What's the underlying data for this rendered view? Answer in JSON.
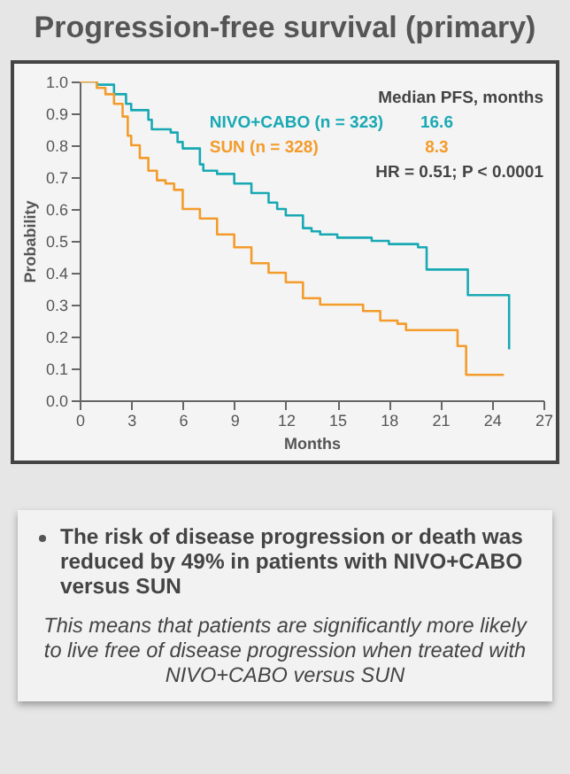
{
  "chart_data": {
    "type": "step",
    "title": "Progression-free survival (primary)",
    "xlabel": "Months",
    "ylabel": "Probability",
    "xlim": [
      0,
      27
    ],
    "xticks": [
      0,
      3,
      6,
      9,
      12,
      15,
      18,
      21,
      24,
      27
    ],
    "ylim": [
      0,
      1
    ],
    "yticks": [
      {
        "value": 0,
        "label": "0.0"
      },
      {
        "value": 0.1,
        "label": "0.1"
      },
      {
        "value": 0.2,
        "label": "0.2"
      },
      {
        "value": 0.3,
        "label": "0.3"
      },
      {
        "value": 0.4,
        "label": "0.4"
      },
      {
        "value": 0.5,
        "label": "0.5"
      },
      {
        "value": 0.6,
        "label": "0.6"
      },
      {
        "value": 0.7,
        "label": "0.7"
      },
      {
        "value": 0.8,
        "label": "0.8"
      },
      {
        "value": 0.9,
        "label": "0.9"
      },
      {
        "value": 1,
        "label": "1.0"
      }
    ],
    "grid": false,
    "series": [
      {
        "name": "NIVO+CABO (n = 323)",
        "color": "#19a9b4",
        "x": [
          0,
          1,
          2,
          2.7,
          3,
          4,
          4.2,
          5.3,
          5.7,
          6,
          7,
          7.2,
          8,
          9,
          10,
          11,
          11.5,
          12,
          13,
          13.5,
          14,
          15,
          17,
          18,
          19.7,
          20.2,
          22.6,
          25,
          25
        ],
        "values": [
          1,
          0.99,
          0.96,
          0.93,
          0.91,
          0.88,
          0.85,
          0.84,
          0.81,
          0.79,
          0.74,
          0.72,
          0.71,
          0.68,
          0.65,
          0.62,
          0.6,
          0.58,
          0.54,
          0.53,
          0.52,
          0.51,
          0.5,
          0.49,
          0.48,
          0.41,
          0.33,
          0.33,
          0.16
        ]
      },
      {
        "name": "SUN (n = 328)",
        "color": "#f39c2c",
        "x": [
          0,
          1,
          1.5,
          2,
          2.5,
          2.8,
          3,
          3.5,
          4,
          4.5,
          5,
          5.5,
          6,
          7,
          8,
          9,
          10,
          11,
          12,
          13,
          14,
          15,
          16.5,
          17.5,
          18.5,
          19,
          22,
          22.5,
          24.7
        ],
        "values": [
          1,
          0.98,
          0.96,
          0.93,
          0.89,
          0.83,
          0.8,
          0.76,
          0.72,
          0.69,
          0.68,
          0.66,
          0.6,
          0.57,
          0.52,
          0.48,
          0.43,
          0.4,
          0.37,
          0.32,
          0.3,
          0.3,
          0.28,
          0.25,
          0.24,
          0.22,
          0.17,
          0.08,
          0.08
        ]
      }
    ],
    "annotations": [
      "Median PFS, months",
      "16.6",
      "8.3",
      "HR = 0.51; P < 0.0001",
      "The risk of disease progression or death was reduced by 49% in patients with NIVO+CABO versus SUN",
      "This means that patients are significantly more likely to live free of disease progression when treated with NIVO+CABO versus SUN"
    ]
  }
}
